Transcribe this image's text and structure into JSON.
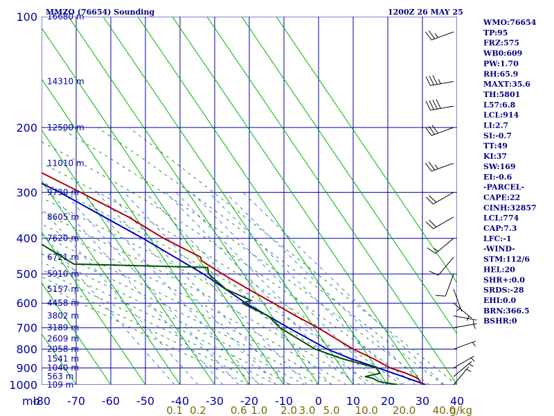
{
  "header": {
    "left_title": "MMZO (76654) Sounding",
    "right_title": "1200Z 26 MAY 25"
  },
  "indices": [
    "WMO:76654",
    "TP:95",
    "FRZ:575",
    "WB0:609",
    "PW:1.70",
    "RH:65.9",
    "MAXT:35.6",
    "TH:5801",
    "L57:6.8",
    "LCL:914",
    "LI:2.7",
    "SI:-0.7",
    "TT:49",
    "KI:37",
    "SW:169",
    "EI:-0.6",
    "-PARCEL-",
    "CAPE:22",
    "CINH:32857",
    "LCL:774",
    "CAP:7.3",
    "LFC:-1",
    "-WIND-",
    "STM:112/6",
    "HEL:20",
    "SHR+:0.0",
    "SRDS:-28",
    "EHI:0.0",
    "BRN:366.5",
    "BSHR:0"
  ],
  "colors": {
    "grid": "#0000a0",
    "dry_adiabat": "#00b000",
    "moist_adiabat": "#2a8a2a",
    "mixing_ratio": "#3a7fd0",
    "temperature": "#b00000",
    "dewpoint": "#005000",
    "parcel": "#0000c0",
    "wind": "#000000"
  },
  "chart_data": {
    "type": "skew-t",
    "pressure_unit_label": "mb",
    "mixing_unit_label": "g/kg",
    "pressure_levels": [
      100,
      200,
      300,
      400,
      500,
      600,
      700,
      800,
      900,
      1000
    ],
    "temperature_ticks": [
      -80,
      -70,
      -60,
      -50,
      -40,
      -30,
      -20,
      -10,
      0,
      10,
      20,
      30,
      40
    ],
    "height_labels": [
      {
        "p": 100,
        "label": "16680 m"
      },
      {
        "p": 150,
        "label": "14310 m"
      },
      {
        "p": 200,
        "label": "12500 m"
      },
      {
        "p": 250,
        "label": "11010 m"
      },
      {
        "p": 300,
        "label": "9730 m"
      },
      {
        "p": 350,
        "label": "8605 m"
      },
      {
        "p": 400,
        "label": "7620 m"
      },
      {
        "p": 450,
        "label": "6721 m"
      },
      {
        "p": 500,
        "label": "5910 m"
      },
      {
        "p": 550,
        "label": "5157 m"
      },
      {
        "p": 600,
        "label": "4458 m"
      },
      {
        "p": 650,
        "label": "3802 m"
      },
      {
        "p": 700,
        "label": "3189 m"
      },
      {
        "p": 750,
        "label": "2609 m"
      },
      {
        "p": 800,
        "label": "2058 m"
      },
      {
        "p": 850,
        "label": "1541 m"
      },
      {
        "p": 900,
        "label": "1040 m"
      },
      {
        "p": 950,
        "label": "563 m"
      },
      {
        "p": 1000,
        "label": "109 m"
      }
    ],
    "mixing_ratio_ticks": [
      "0.1",
      "0.2",
      "0.6",
      "1.0",
      "2.0",
      "3.0",
      "5.0",
      "10.0",
      "20.0",
      "40.0"
    ],
    "temperature": [
      [
        1000,
        30.0
      ],
      [
        960,
        30.0
      ],
      [
        925,
        27.0
      ],
      [
        900,
        24.0
      ],
      [
        850,
        21.0
      ],
      [
        800,
        17.0
      ],
      [
        700,
        11.0
      ],
      [
        650,
        7.0
      ],
      [
        600,
        3.0
      ],
      [
        550,
        -1.5
      ],
      [
        500,
        -6.0
      ],
      [
        460,
        -9.5
      ],
      [
        450,
        -9.0
      ],
      [
        400,
        -16.0
      ],
      [
        350,
        -22.0
      ],
      [
        300,
        -31.0
      ],
      [
        250,
        -42.0
      ],
      [
        200,
        -55.0
      ],
      [
        150,
        -72.0
      ],
      [
        120,
        -80.0
      ]
    ],
    "dewpoint": [
      [
        1000,
        23.0
      ],
      [
        980,
        18.0
      ],
      [
        960,
        17.0
      ],
      [
        950,
        15.0
      ],
      [
        930,
        20.0
      ],
      [
        900,
        20.0
      ],
      [
        850,
        12.0
      ],
      [
        800,
        6.0
      ],
      [
        700,
        0.0
      ],
      [
        650,
        -1.0
      ],
      [
        620,
        -4.0
      ],
      [
        600,
        -6.0
      ],
      [
        590,
        -3.0
      ],
      [
        550,
        -8.0
      ],
      [
        500,
        -10.0
      ],
      [
        480,
        -9.0
      ],
      [
        470,
        -47.0
      ],
      [
        400,
        -54.0
      ],
      [
        380,
        -57.0
      ],
      [
        300,
        -64.0
      ],
      [
        250,
        -68.0
      ],
      [
        200,
        -78.0
      ],
      [
        150,
        -86.0
      ],
      [
        140,
        -88.0
      ],
      [
        120,
        -95.0
      ]
    ],
    "parcel": [
      [
        1000,
        31.0
      ],
      [
        950,
        26.0
      ],
      [
        900,
        20.5
      ],
      [
        850,
        14.5
      ],
      [
        800,
        9.5
      ],
      [
        700,
        2.5
      ],
      [
        600,
        -5.0
      ],
      [
        500,
        -11.5
      ],
      [
        400,
        -22.0
      ],
      [
        300,
        -37.0
      ],
      [
        200,
        -62.0
      ],
      [
        150,
        -82.0
      ]
    ],
    "wind_barbs": [
      {
        "p": 110,
        "dir": 250,
        "spd": 25
      },
      {
        "p": 150,
        "dir": 260,
        "spd": 35
      },
      {
        "p": 175,
        "dir": 260,
        "spd": 40
      },
      {
        "p": 200,
        "dir": 250,
        "spd": 30
      },
      {
        "p": 250,
        "dir": 250,
        "spd": 25
      },
      {
        "p": 300,
        "dir": 240,
        "spd": 20
      },
      {
        "p": 350,
        "dir": 240,
        "spd": 20
      },
      {
        "p": 400,
        "dir": 230,
        "spd": 15
      },
      {
        "p": 450,
        "dir": 220,
        "spd": 10
      },
      {
        "p": 500,
        "dir": 200,
        "spd": 10
      },
      {
        "p": 550,
        "dir": 160,
        "spd": 5
      },
      {
        "p": 600,
        "dir": 130,
        "spd": 5
      },
      {
        "p": 650,
        "dir": 100,
        "spd": 5
      },
      {
        "p": 700,
        "dir": 80,
        "spd": 5
      },
      {
        "p": 800,
        "dir": 70,
        "spd": 5
      },
      {
        "p": 900,
        "dir": 60,
        "spd": 5
      },
      {
        "p": 950,
        "dir": 50,
        "spd": 5
      },
      {
        "p": 1000,
        "dir": 40,
        "spd": 5
      }
    ]
  }
}
